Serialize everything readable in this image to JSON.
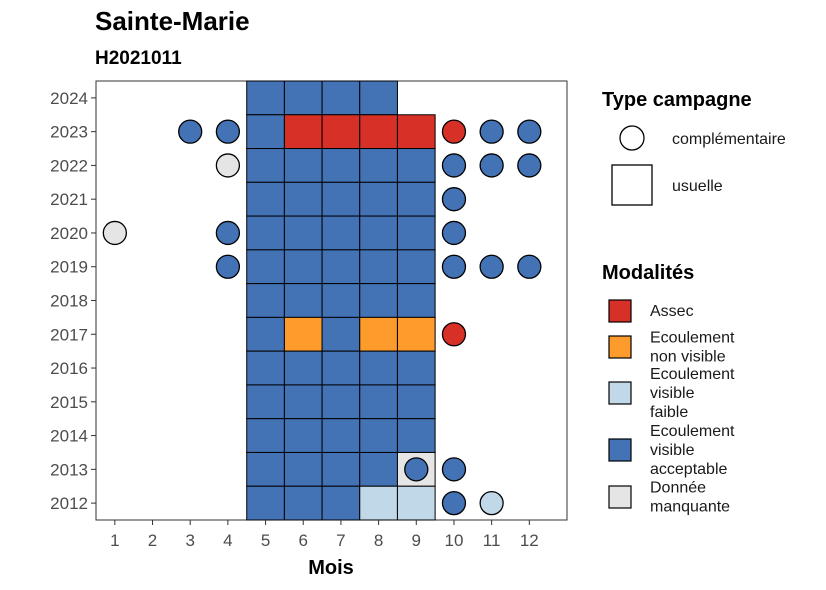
{
  "chart_data": {
    "type": "heatmap",
    "title": "Sainte-Marie",
    "subtitle": "H2021011",
    "xlabel": "Mois",
    "ylabel": "",
    "x_ticks": [
      "1",
      "2",
      "3",
      "4",
      "5",
      "6",
      "7",
      "8",
      "9",
      "10",
      "11",
      "12"
    ],
    "y_ticks": [
      "2012",
      "2013",
      "2014",
      "2015",
      "2016",
      "2017",
      "2018",
      "2019",
      "2020",
      "2021",
      "2022",
      "2023",
      "2024"
    ],
    "grid": false,
    "legend_placement": "right",
    "legend": {
      "type_title": "Type campagne",
      "types": [
        {
          "key": "complementaire",
          "label": "complémentaire",
          "shape": "circle"
        },
        {
          "key": "usuelle",
          "label": "usuelle",
          "shape": "square"
        }
      ],
      "modalite_title": "Modalités",
      "modalites": [
        {
          "key": "assec",
          "label_lines": [
            "Assec"
          ],
          "color": "#d73027"
        },
        {
          "key": "ecoulement_non_visible",
          "label_lines": [
            "Ecoulement",
            "non visible"
          ],
          "color": "#fd9b2d"
        },
        {
          "key": "ecoulement_visible_faible",
          "label_lines": [
            "Ecoulement",
            "visible",
            "faible"
          ],
          "color": "#c0d8e8"
        },
        {
          "key": "ecoulement_visible_acceptable",
          "label_lines": [
            "Ecoulement",
            "visible",
            "acceptable"
          ],
          "color": "#4372b5"
        },
        {
          "key": "donnee_manquante",
          "label_lines": [
            "Donnée",
            "manquante"
          ],
          "color": "#e5e5e5"
        }
      ]
    },
    "points": [
      {
        "year": 2024,
        "month": 5,
        "type": "usuelle",
        "modalite": "ecoulement_visible_acceptable"
      },
      {
        "year": 2024,
        "month": 6,
        "type": "usuelle",
        "modalite": "ecoulement_visible_acceptable"
      },
      {
        "year": 2024,
        "month": 7,
        "type": "usuelle",
        "modalite": "ecoulement_visible_acceptable"
      },
      {
        "year": 2024,
        "month": 8,
        "type": "usuelle",
        "modalite": "ecoulement_visible_acceptable"
      },
      {
        "year": 2023,
        "month": 3,
        "type": "complementaire",
        "modalite": "ecoulement_visible_acceptable"
      },
      {
        "year": 2023,
        "month": 4,
        "type": "complementaire",
        "modalite": "ecoulement_visible_acceptable"
      },
      {
        "year": 2023,
        "month": 5,
        "type": "usuelle",
        "modalite": "ecoulement_visible_acceptable"
      },
      {
        "year": 2023,
        "month": 6,
        "type": "usuelle",
        "modalite": "assec"
      },
      {
        "year": 2023,
        "month": 7,
        "type": "usuelle",
        "modalite": "assec"
      },
      {
        "year": 2023,
        "month": 8,
        "type": "usuelle",
        "modalite": "assec"
      },
      {
        "year": 2023,
        "month": 9,
        "type": "usuelle",
        "modalite": "assec"
      },
      {
        "year": 2023,
        "month": 10,
        "type": "complementaire",
        "modalite": "assec"
      },
      {
        "year": 2023,
        "month": 11,
        "type": "complementaire",
        "modalite": "ecoulement_visible_acceptable"
      },
      {
        "year": 2023,
        "month": 12,
        "type": "complementaire",
        "modalite": "ecoulement_visible_acceptable"
      },
      {
        "year": 2022,
        "month": 4,
        "type": "complementaire",
        "modalite": "donnee_manquante"
      },
      {
        "year": 2022,
        "month": 5,
        "type": "usuelle",
        "modalite": "ecoulement_visible_acceptable"
      },
      {
        "year": 2022,
        "month": 6,
        "type": "usuelle",
        "modalite": "ecoulement_visible_acceptable"
      },
      {
        "year": 2022,
        "month": 7,
        "type": "usuelle",
        "modalite": "ecoulement_visible_acceptable"
      },
      {
        "year": 2022,
        "month": 8,
        "type": "usuelle",
        "modalite": "ecoulement_visible_acceptable"
      },
      {
        "year": 2022,
        "month": 9,
        "type": "usuelle",
        "modalite": "ecoulement_visible_acceptable"
      },
      {
        "year": 2022,
        "month": 10,
        "type": "complementaire",
        "modalite": "ecoulement_visible_acceptable"
      },
      {
        "year": 2022,
        "month": 11,
        "type": "complementaire",
        "modalite": "ecoulement_visible_acceptable"
      },
      {
        "year": 2022,
        "month": 12,
        "type": "complementaire",
        "modalite": "ecoulement_visible_acceptable"
      },
      {
        "year": 2021,
        "month": 5,
        "type": "usuelle",
        "modalite": "ecoulement_visible_acceptable"
      },
      {
        "year": 2021,
        "month": 6,
        "type": "usuelle",
        "modalite": "ecoulement_visible_acceptable"
      },
      {
        "year": 2021,
        "month": 7,
        "type": "usuelle",
        "modalite": "ecoulement_visible_acceptable"
      },
      {
        "year": 2021,
        "month": 8,
        "type": "usuelle",
        "modalite": "ecoulement_visible_acceptable"
      },
      {
        "year": 2021,
        "month": 9,
        "type": "usuelle",
        "modalite": "ecoulement_visible_acceptable"
      },
      {
        "year": 2021,
        "month": 10,
        "type": "complementaire",
        "modalite": "ecoulement_visible_acceptable"
      },
      {
        "year": 2020,
        "month": 1,
        "type": "complementaire",
        "modalite": "donnee_manquante"
      },
      {
        "year": 2020,
        "month": 4,
        "type": "complementaire",
        "modalite": "ecoulement_visible_acceptable"
      },
      {
        "year": 2020,
        "month": 5,
        "type": "usuelle",
        "modalite": "ecoulement_visible_acceptable"
      },
      {
        "year": 2020,
        "month": 6,
        "type": "usuelle",
        "modalite": "ecoulement_visible_acceptable"
      },
      {
        "year": 2020,
        "month": 7,
        "type": "usuelle",
        "modalite": "ecoulement_visible_acceptable"
      },
      {
        "year": 2020,
        "month": 8,
        "type": "usuelle",
        "modalite": "ecoulement_visible_acceptable"
      },
      {
        "year": 2020,
        "month": 9,
        "type": "usuelle",
        "modalite": "ecoulement_visible_acceptable"
      },
      {
        "year": 2020,
        "month": 10,
        "type": "complementaire",
        "modalite": "ecoulement_visible_acceptable"
      },
      {
        "year": 2019,
        "month": 4,
        "type": "complementaire",
        "modalite": "ecoulement_visible_acceptable"
      },
      {
        "year": 2019,
        "month": 5,
        "type": "usuelle",
        "modalite": "ecoulement_visible_acceptable"
      },
      {
        "year": 2019,
        "month": 6,
        "type": "usuelle",
        "modalite": "ecoulement_visible_acceptable"
      },
      {
        "year": 2019,
        "month": 7,
        "type": "usuelle",
        "modalite": "ecoulement_visible_acceptable"
      },
      {
        "year": 2019,
        "month": 8,
        "type": "usuelle",
        "modalite": "ecoulement_visible_acceptable"
      },
      {
        "year": 2019,
        "month": 9,
        "type": "usuelle",
        "modalite": "ecoulement_visible_acceptable"
      },
      {
        "year": 2019,
        "month": 10,
        "type": "complementaire",
        "modalite": "ecoulement_visible_acceptable"
      },
      {
        "year": 2019,
        "month": 11,
        "type": "complementaire",
        "modalite": "ecoulement_visible_acceptable"
      },
      {
        "year": 2019,
        "month": 12,
        "type": "complementaire",
        "modalite": "ecoulement_visible_acceptable"
      },
      {
        "year": 2018,
        "month": 5,
        "type": "usuelle",
        "modalite": "ecoulement_visible_acceptable"
      },
      {
        "year": 2018,
        "month": 6,
        "type": "usuelle",
        "modalite": "ecoulement_visible_acceptable"
      },
      {
        "year": 2018,
        "month": 7,
        "type": "usuelle",
        "modalite": "ecoulement_visible_acceptable"
      },
      {
        "year": 2018,
        "month": 8,
        "type": "usuelle",
        "modalite": "ecoulement_visible_acceptable"
      },
      {
        "year": 2018,
        "month": 9,
        "type": "usuelle",
        "modalite": "ecoulement_visible_acceptable"
      },
      {
        "year": 2017,
        "month": 5,
        "type": "usuelle",
        "modalite": "ecoulement_visible_acceptable"
      },
      {
        "year": 2017,
        "month": 6,
        "type": "usuelle",
        "modalite": "ecoulement_non_visible"
      },
      {
        "year": 2017,
        "month": 7,
        "type": "usuelle",
        "modalite": "ecoulement_visible_acceptable"
      },
      {
        "year": 2017,
        "month": 8,
        "type": "usuelle",
        "modalite": "ecoulement_non_visible"
      },
      {
        "year": 2017,
        "month": 9,
        "type": "usuelle",
        "modalite": "ecoulement_non_visible"
      },
      {
        "year": 2017,
        "month": 10,
        "type": "complementaire",
        "modalite": "assec"
      },
      {
        "year": 2016,
        "month": 5,
        "type": "usuelle",
        "modalite": "ecoulement_visible_acceptable"
      },
      {
        "year": 2016,
        "month": 6,
        "type": "usuelle",
        "modalite": "ecoulement_visible_acceptable"
      },
      {
        "year": 2016,
        "month": 7,
        "type": "usuelle",
        "modalite": "ecoulement_visible_acceptable"
      },
      {
        "year": 2016,
        "month": 8,
        "type": "usuelle",
        "modalite": "ecoulement_visible_acceptable"
      },
      {
        "year": 2016,
        "month": 9,
        "type": "usuelle",
        "modalite": "ecoulement_visible_acceptable"
      },
      {
        "year": 2015,
        "month": 5,
        "type": "usuelle",
        "modalite": "ecoulement_visible_acceptable"
      },
      {
        "year": 2015,
        "month": 6,
        "type": "usuelle",
        "modalite": "ecoulement_visible_acceptable"
      },
      {
        "year": 2015,
        "month": 7,
        "type": "usuelle",
        "modalite": "ecoulement_visible_acceptable"
      },
      {
        "year": 2015,
        "month": 8,
        "type": "usuelle",
        "modalite": "ecoulement_visible_acceptable"
      },
      {
        "year": 2015,
        "month": 9,
        "type": "usuelle",
        "modalite": "ecoulement_visible_acceptable"
      },
      {
        "year": 2014,
        "month": 5,
        "type": "usuelle",
        "modalite": "ecoulement_visible_acceptable"
      },
      {
        "year": 2014,
        "month": 6,
        "type": "usuelle",
        "modalite": "ecoulement_visible_acceptable"
      },
      {
        "year": 2014,
        "month": 7,
        "type": "usuelle",
        "modalite": "ecoulement_visible_acceptable"
      },
      {
        "year": 2014,
        "month": 8,
        "type": "usuelle",
        "modalite": "ecoulement_visible_acceptable"
      },
      {
        "year": 2014,
        "month": 9,
        "type": "usuelle",
        "modalite": "ecoulement_visible_acceptable"
      },
      {
        "year": 2013,
        "month": 5,
        "type": "usuelle",
        "modalite": "ecoulement_visible_acceptable"
      },
      {
        "year": 2013,
        "month": 6,
        "type": "usuelle",
        "modalite": "ecoulement_visible_acceptable"
      },
      {
        "year": 2013,
        "month": 7,
        "type": "usuelle",
        "modalite": "ecoulement_visible_acceptable"
      },
      {
        "year": 2013,
        "month": 8,
        "type": "usuelle",
        "modalite": "ecoulement_visible_acceptable"
      },
      {
        "year": 2013,
        "month": 9,
        "type": "usuelle",
        "modalite": "donnee_manquante"
      },
      {
        "year": 2013,
        "month": 9,
        "type": "complementaire",
        "modalite": "ecoulement_visible_acceptable"
      },
      {
        "year": 2013,
        "month": 10,
        "type": "complementaire",
        "modalite": "ecoulement_visible_acceptable"
      },
      {
        "year": 2012,
        "month": 5,
        "type": "usuelle",
        "modalite": "ecoulement_visible_acceptable"
      },
      {
        "year": 2012,
        "month": 6,
        "type": "usuelle",
        "modalite": "ecoulement_visible_acceptable"
      },
      {
        "year": 2012,
        "month": 7,
        "type": "usuelle",
        "modalite": "ecoulement_visible_acceptable"
      },
      {
        "year": 2012,
        "month": 8,
        "type": "usuelle",
        "modalite": "ecoulement_visible_faible"
      },
      {
        "year": 2012,
        "month": 9,
        "type": "usuelle",
        "modalite": "ecoulement_visible_faible"
      },
      {
        "year": 2012,
        "month": 10,
        "type": "complementaire",
        "modalite": "ecoulement_visible_acceptable"
      },
      {
        "year": 2012,
        "month": 11,
        "type": "complementaire",
        "modalite": "ecoulement_visible_faible"
      }
    ]
  }
}
